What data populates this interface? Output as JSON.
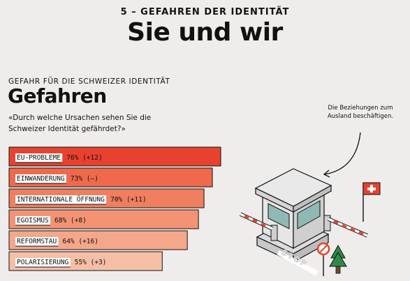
{
  "header": {
    "kicker": "5 – GEFAHREN DER IDENTITÄT",
    "title": "Sie und wir"
  },
  "chart_header": {
    "kicker": "GEFAHR FÜR DIE SCHWEIZER IDENTITÄT",
    "title": "Gefahren",
    "question": "«Durch welche Ursachen sehen Sie die Schweizer Identität gefährdet?»"
  },
  "annotation": "Die Beziehungen zum Ausland beschäftigen.",
  "illustration": {
    "sign_text": "STOP"
  },
  "colors": {
    "bar_shades": [
      "#e8422f",
      "#ef6a4c",
      "#f07f5f",
      "#f39373",
      "#f5a78a",
      "#f7bea6"
    ]
  },
  "chart_data": {
    "type": "bar",
    "orientation": "horizontal",
    "categories": [
      "EU-PROBLEME",
      "EINWANDERUNG",
      "INTERNATIONALE ÖFFNUNG",
      "EGOISMUS",
      "REFORMSTAU",
      "POLARISIERUNG"
    ],
    "values": [
      76,
      73,
      70,
      68,
      64,
      55
    ],
    "value_labels": [
      "76%",
      "73%",
      "70%",
      "68%",
      "64%",
      "55%"
    ],
    "change_labels": [
      "(+12)",
      "(–)",
      "(+11)",
      "(+8)",
      "(+16)",
      "(+3)"
    ],
    "unit": "%",
    "xlim": [
      0,
      100
    ],
    "grid": false,
    "legend": "none"
  }
}
